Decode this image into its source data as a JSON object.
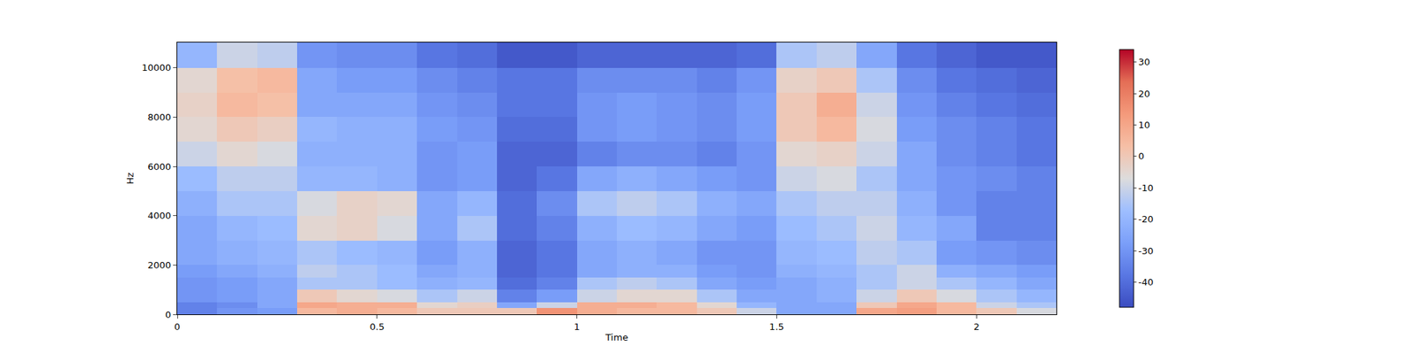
{
  "chart_data": {
    "type": "heatmap",
    "xlabel": "Time",
    "ylabel": "Hz",
    "x": [
      0,
      0.1,
      0.2,
      0.3,
      0.4,
      0.5,
      0.6,
      0.7,
      0.8,
      0.9,
      1.0,
      1.1,
      1.2,
      1.3,
      1.4,
      1.5,
      1.6,
      1.7,
      1.8,
      1.9,
      2.0,
      2.1,
      2.2
    ],
    "y": [
      0,
      250,
      500,
      1000,
      1500,
      2000,
      3000,
      4000,
      5000,
      6000,
      7000,
      8000,
      9000,
      10000,
      11025
    ],
    "z": [
      [
        -35,
        -30,
        -28,
        5,
        8,
        5,
        0,
        0,
        0,
        15,
        8,
        5,
        5,
        0,
        -10,
        -25,
        -25,
        10,
        12,
        5,
        0,
        -8
      ],
      [
        -35,
        -32,
        -25,
        10,
        8,
        8,
        -5,
        -2,
        -25,
        -10,
        8,
        8,
        5,
        -5,
        -20,
        -25,
        -25,
        0,
        10,
        5,
        -10,
        -15
      ],
      [
        -30,
        -28,
        -25,
        0,
        -5,
        -8,
        -15,
        -10,
        -35,
        -28,
        -10,
        -5,
        -5,
        -15,
        -25,
        -25,
        -22,
        -10,
        0,
        -8,
        -15,
        -20
      ],
      [
        -30,
        -28,
        -25,
        -15,
        -15,
        -18,
        -22,
        -20,
        -40,
        -35,
        -15,
        -12,
        -15,
        -25,
        -28,
        -25,
        -22,
        -15,
        -10,
        -15,
        -20,
        -25
      ],
      [
        -28,
        -25,
        -22,
        -12,
        -15,
        -18,
        -25,
        -22,
        -42,
        -38,
        -25,
        -22,
        -22,
        -28,
        -30,
        -22,
        -20,
        -15,
        -10,
        -22,
        -25,
        -28
      ],
      [
        -25,
        -22,
        -20,
        -15,
        -18,
        -20,
        -28,
        -22,
        -42,
        -38,
        -25,
        -22,
        -25,
        -30,
        -30,
        -20,
        -18,
        -12,
        -15,
        -28,
        -30,
        -32
      ],
      [
        -25,
        -20,
        -18,
        -5,
        -3,
        -8,
        -25,
        -15,
        -40,
        -35,
        -22,
        -18,
        -20,
        -25,
        -28,
        -18,
        -15,
        -10,
        -20,
        -25,
        -35,
        -35
      ],
      [
        -22,
        -15,
        -15,
        -8,
        -3,
        -5,
        -25,
        -20,
        -40,
        -32,
        -15,
        -12,
        -15,
        -22,
        -25,
        -15,
        -12,
        -12,
        -22,
        -30,
        -35,
        -35
      ],
      [
        -18,
        -12,
        -12,
        -20,
        -20,
        -22,
        -30,
        -28,
        -42,
        -38,
        -25,
        -22,
        -25,
        -28,
        -30,
        -10,
        -8,
        -15,
        -25,
        -30,
        -32,
        -35
      ],
      [
        -10,
        -5,
        -8,
        -22,
        -22,
        -22,
        -30,
        -28,
        -42,
        -42,
        -35,
        -32,
        -32,
        -35,
        -30,
        -5,
        -3,
        -10,
        -25,
        -32,
        -35,
        -38
      ],
      [
        -5,
        0,
        -2,
        -20,
        -22,
        -22,
        -28,
        -30,
        -40,
        -40,
        -30,
        -28,
        -30,
        -32,
        -28,
        0,
        5,
        -8,
        -28,
        -32,
        -35,
        -38
      ],
      [
        -3,
        5,
        3,
        -25,
        -25,
        -25,
        -30,
        -32,
        -38,
        -38,
        -30,
        -28,
        -30,
        -32,
        -28,
        0,
        8,
        -10,
        -30,
        -35,
        -38,
        -40
      ],
      [
        -5,
        3,
        5,
        -25,
        -28,
        -28,
        -32,
        -35,
        -38,
        -38,
        -32,
        -32,
        -32,
        -35,
        -30,
        -3,
        0,
        -15,
        -32,
        -38,
        -40,
        -42
      ],
      [
        -20,
        -10,
        -12,
        -30,
        -32,
        -32,
        -38,
        -40,
        -45,
        -45,
        -42,
        -42,
        -42,
        -42,
        -40,
        -15,
        -12,
        -25,
        -38,
        -42,
        -45,
        -45
      ]
    ],
    "xlim": [
      0,
      2.2
    ],
    "xticks": [
      0,
      0.5,
      1,
      1.5,
      2
    ],
    "ylim": [
      0,
      11025
    ],
    "yticks": [
      0,
      2000,
      4000,
      6000,
      8000,
      10000
    ],
    "zlim": [
      -48,
      34
    ],
    "zticks": [
      -40,
      -30,
      -20,
      -10,
      0,
      10,
      20,
      30
    ]
  }
}
